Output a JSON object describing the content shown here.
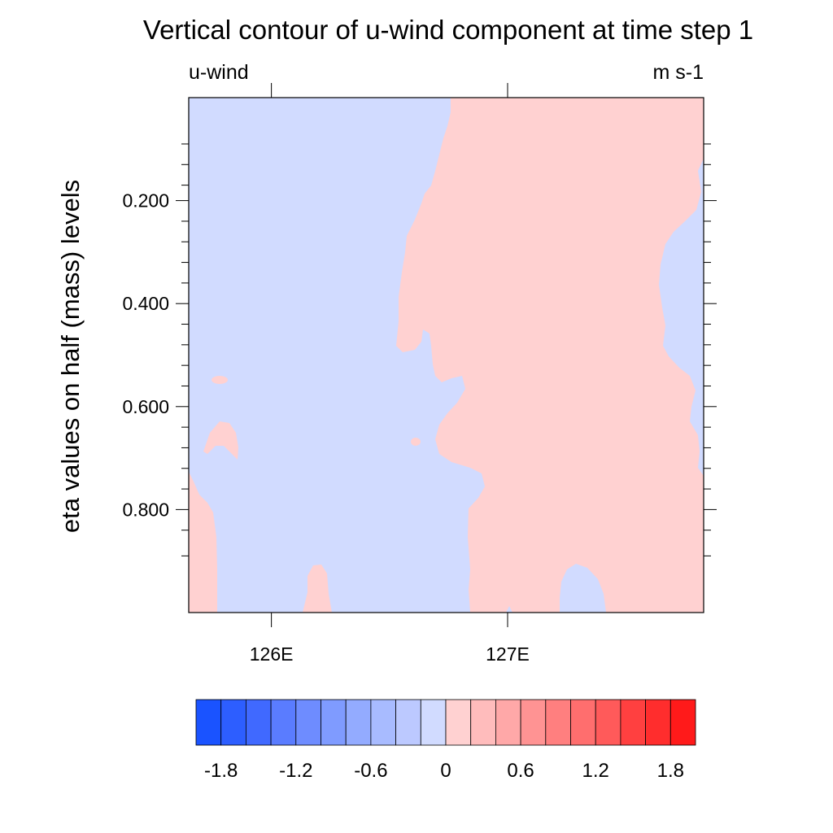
{
  "chart_data": {
    "type": "heatmap",
    "title": "Vertical contour of u-wind component at time step 1",
    "left_string": "u-wind",
    "right_string": "m s-1",
    "ylabel": "eta values on half (mass) levels",
    "xlabel": "",
    "x_tick_labels": [
      "126E",
      "127E"
    ],
    "x_ticks": [
      126,
      127
    ],
    "xlim": [
      125.65,
      127.83
    ],
    "y_tick_labels": [
      "0.200",
      "0.400",
      "0.600",
      "0.800"
    ],
    "y_ticks": [
      0.2,
      0.4,
      0.6,
      0.8
    ],
    "ylim": [
      0.0,
      1.0
    ],
    "y_minor_ticks": [
      0.09,
      0.13,
      0.17,
      0.24,
      0.28,
      0.32,
      0.36,
      0.44,
      0.48,
      0.52,
      0.56,
      0.64,
      0.68,
      0.72,
      0.76,
      0.84,
      0.89
    ],
    "field_description": "Negative u-wind (light blue) on western side, positive u-wind (light pink) on eastern side",
    "colorbar": {
      "levels": [
        -2.0,
        -1.8,
        -1.6,
        -1.4,
        -1.2,
        -1.0,
        -0.8,
        -0.6,
        -0.4,
        -0.2,
        0,
        0.2,
        0.4,
        0.6,
        0.8,
        1.0,
        1.2,
        1.4,
        1.6,
        1.8,
        2.0
      ],
      "tick_labels": [
        "-1.8",
        "-1.2",
        "-0.6",
        "0",
        "0.6",
        "1.2",
        "1.8"
      ],
      "tick_values": [
        -1.8,
        -1.2,
        -0.6,
        0,
        0.6,
        1.2,
        1.8
      ],
      "colors": [
        "#1a53ff",
        "#2d5eff",
        "#4069ff",
        "#5a7cff",
        "#6e8cff",
        "#7f9bff",
        "#93abff",
        "#a8bbff",
        "#bcc9ff",
        "#d1dbff",
        "#ffd1d1",
        "#ffbcbc",
        "#ffa8a8",
        "#ff9393",
        "#ff7f7f",
        "#ff6e6e",
        "#ff5a5a",
        "#ff4040",
        "#ff2d2d",
        "#ff1a1a"
      ]
    },
    "field_colors": {
      "negative": "#d1dbff",
      "positive": "#ffd1d1"
    }
  }
}
